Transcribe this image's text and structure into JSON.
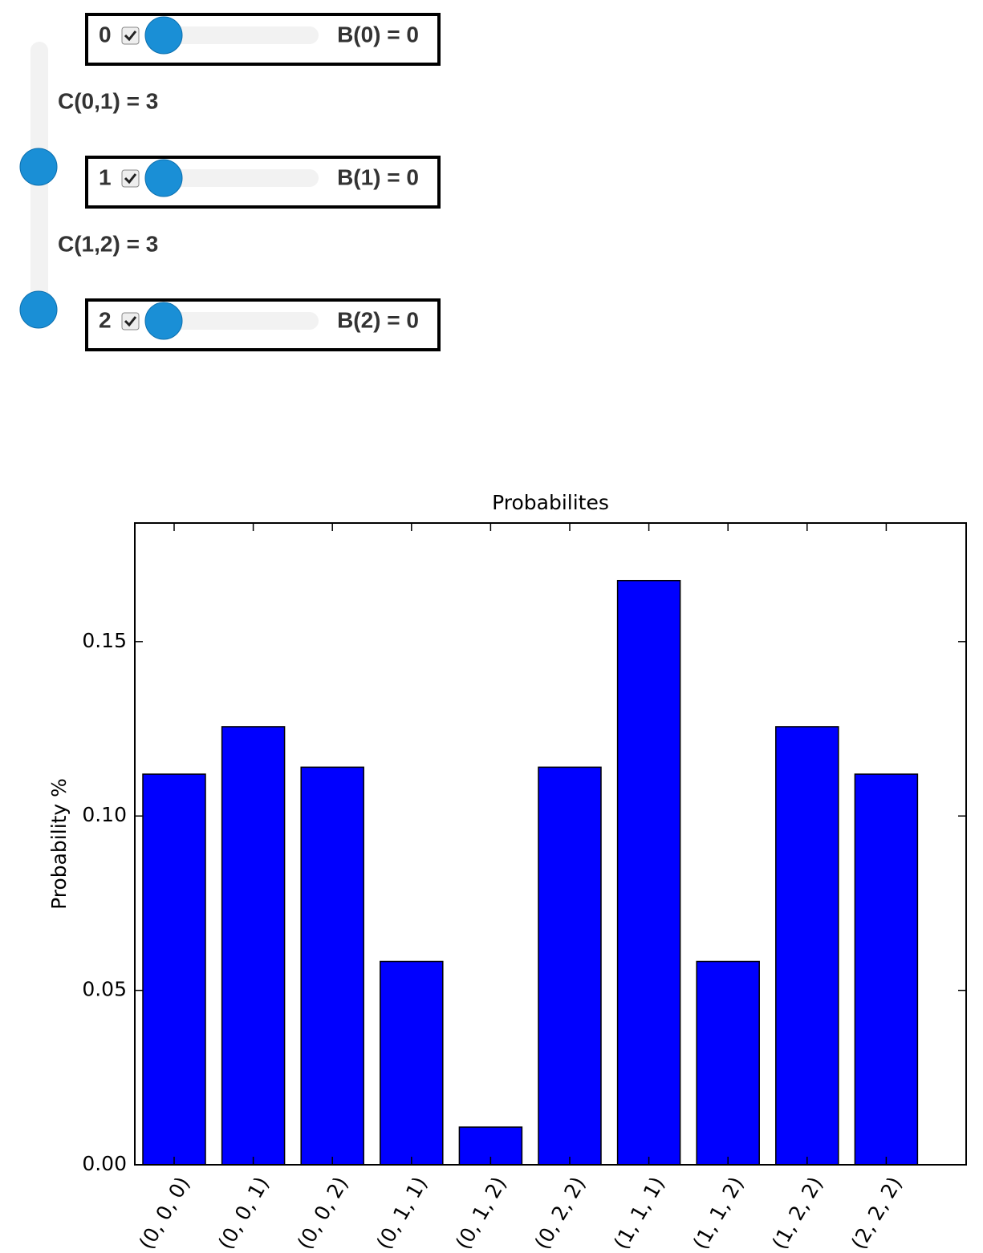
{
  "widgets": {
    "rows": [
      {
        "index": "0",
        "label": "B(0) = 0"
      },
      {
        "index": "1",
        "label": "B(1) = 0"
      },
      {
        "index": "2",
        "label": "B(2) = 0"
      }
    ],
    "couplings": [
      "C(0,1) = 3",
      "C(1,2) = 3"
    ]
  },
  "chart_data": {
    "type": "bar",
    "title": "Probabilites",
    "y_label": "Probability %",
    "categories": [
      "(0, 0, 0)",
      "(0, 0, 1)",
      "(0, 0, 2)",
      "(0, 1, 1)",
      "(0, 1, 2)",
      "(0, 2, 2)",
      "(1, 1, 1)",
      "(1, 1, 2)",
      "(1, 2, 2)",
      "(2, 2, 2)"
    ],
    "values": [
      0.112,
      0.1256,
      0.114,
      0.0583,
      0.0108,
      0.114,
      0.1675,
      0.0583,
      0.1256,
      0.112
    ],
    "color": "#0000ff",
    "ylim": [
      0,
      0.184
    ],
    "yticks": [
      {
        "value": 0,
        "label": "0.00"
      },
      {
        "value": 0.05,
        "label": "0.05"
      },
      {
        "value": 0.1,
        "label": "0.10"
      },
      {
        "value": 0.15,
        "label": "0.15"
      }
    ]
  }
}
